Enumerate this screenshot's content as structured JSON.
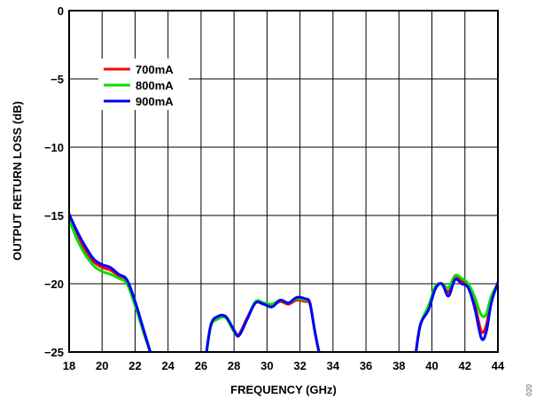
{
  "chart_data": {
    "type": "line",
    "title": "",
    "xlabel": "FREQUENCY (GHz)",
    "ylabel": "OUTPUT RETURN LOSS (dB)",
    "xlim": [
      18,
      44
    ],
    "ylim": [
      -25,
      0
    ],
    "x_ticks": [
      18,
      20,
      22,
      24,
      26,
      28,
      30,
      32,
      34,
      36,
      38,
      40,
      42,
      44
    ],
    "y_ticks": [
      0,
      -5,
      -10,
      -15,
      -20,
      -25
    ],
    "y_tick_labels": [
      "0",
      "−5",
      "−10",
      "−15",
      "−20",
      "−25"
    ],
    "grid": true,
    "legend_position": "top-left",
    "series": [
      {
        "name": "700mA",
        "color": "#ff0000",
        "segments": [
          [
            [
              18.0,
              -15.1
            ],
            [
              18.5,
              -16.5
            ],
            [
              19.0,
              -17.6
            ],
            [
              19.5,
              -18.4
            ],
            [
              20.0,
              -18.8
            ],
            [
              20.5,
              -19.0
            ],
            [
              21.0,
              -19.4
            ],
            [
              21.5,
              -19.8
            ],
            [
              22.0,
              -21.5
            ],
            [
              22.5,
              -23.5
            ],
            [
              23.0,
              -25.3
            ]
          ],
          [
            [
              26.3,
              -25.3
            ],
            [
              26.6,
              -23.0
            ],
            [
              27.0,
              -22.5
            ],
            [
              27.5,
              -22.4
            ],
            [
              28.0,
              -23.5
            ],
            [
              28.3,
              -23.7
            ],
            [
              28.8,
              -22.5
            ],
            [
              29.3,
              -21.4
            ],
            [
              29.8,
              -21.5
            ],
            [
              30.3,
              -21.6
            ],
            [
              30.8,
              -21.3
            ],
            [
              31.3,
              -21.5
            ],
            [
              31.8,
              -21.2
            ],
            [
              32.3,
              -21.3
            ],
            [
              32.6,
              -21.5
            ],
            [
              32.9,
              -23.5
            ],
            [
              33.2,
              -25.3
            ]
          ],
          [
            [
              39.0,
              -25.3
            ],
            [
              39.3,
              -23.0
            ],
            [
              39.8,
              -21.8
            ],
            [
              40.2,
              -20.3
            ],
            [
              40.6,
              -20.0
            ],
            [
              41.0,
              -20.6
            ],
            [
              41.4,
              -19.6
            ],
            [
              41.8,
              -19.8
            ],
            [
              42.2,
              -20.2
            ],
            [
              42.6,
              -21.5
            ],
            [
              43.0,
              -23.5
            ],
            [
              43.3,
              -23.0
            ],
            [
              43.6,
              -21.2
            ],
            [
              44.0,
              -20.0
            ]
          ]
        ]
      },
      {
        "name": "800mA",
        "color": "#00e000",
        "segments": [
          [
            [
              18.0,
              -15.3
            ],
            [
              18.5,
              -16.8
            ],
            [
              19.0,
              -17.9
            ],
            [
              19.5,
              -18.7
            ],
            [
              20.0,
              -19.1
            ],
            [
              20.5,
              -19.3
            ],
            [
              21.0,
              -19.6
            ],
            [
              21.5,
              -20.0
            ],
            [
              22.0,
              -21.6
            ],
            [
              22.5,
              -23.5
            ],
            [
              23.0,
              -25.3
            ]
          ],
          [
            [
              26.3,
              -25.3
            ],
            [
              26.6,
              -23.1
            ],
            [
              27.0,
              -22.6
            ],
            [
              27.5,
              -22.5
            ],
            [
              28.0,
              -23.5
            ],
            [
              28.3,
              -23.8
            ],
            [
              28.8,
              -22.6
            ],
            [
              29.3,
              -21.3
            ],
            [
              29.8,
              -21.4
            ],
            [
              30.3,
              -21.5
            ],
            [
              30.8,
              -21.2
            ],
            [
              31.3,
              -21.4
            ],
            [
              31.8,
              -21.1
            ],
            [
              32.3,
              -21.2
            ],
            [
              32.6,
              -21.4
            ],
            [
              32.9,
              -23.5
            ],
            [
              33.2,
              -25.3
            ]
          ],
          [
            [
              39.0,
              -25.3
            ],
            [
              39.3,
              -23.0
            ],
            [
              39.8,
              -21.6
            ],
            [
              40.2,
              -20.2
            ],
            [
              40.6,
              -20.0
            ],
            [
              41.0,
              -20.3
            ],
            [
              41.4,
              -19.4
            ],
            [
              41.8,
              -19.6
            ],
            [
              42.2,
              -20.0
            ],
            [
              42.6,
              -21.0
            ],
            [
              43.0,
              -22.3
            ],
            [
              43.3,
              -22.2
            ],
            [
              43.6,
              -20.9
            ],
            [
              44.0,
              -20.0
            ]
          ]
        ]
      },
      {
        "name": "900mA",
        "color": "#0000ff",
        "segments": [
          [
            [
              18.0,
              -14.9
            ],
            [
              18.5,
              -16.2
            ],
            [
              19.0,
              -17.3
            ],
            [
              19.5,
              -18.2
            ],
            [
              20.0,
              -18.6
            ],
            [
              20.5,
              -18.8
            ],
            [
              21.0,
              -19.3
            ],
            [
              21.5,
              -19.7
            ],
            [
              22.0,
              -21.3
            ],
            [
              22.5,
              -23.3
            ],
            [
              23.0,
              -25.3
            ]
          ],
          [
            [
              26.3,
              -25.3
            ],
            [
              26.6,
              -23.0
            ],
            [
              27.0,
              -22.4
            ],
            [
              27.5,
              -22.4
            ],
            [
              28.0,
              -23.4
            ],
            [
              28.3,
              -23.8
            ],
            [
              28.8,
              -22.6
            ],
            [
              29.3,
              -21.4
            ],
            [
              29.8,
              -21.5
            ],
            [
              30.3,
              -21.7
            ],
            [
              30.8,
              -21.2
            ],
            [
              31.3,
              -21.4
            ],
            [
              31.8,
              -21.0
            ],
            [
              32.3,
              -21.1
            ],
            [
              32.6,
              -21.4
            ],
            [
              32.9,
              -23.5
            ],
            [
              33.2,
              -25.3
            ]
          ],
          [
            [
              39.0,
              -25.3
            ],
            [
              39.3,
              -23.0
            ],
            [
              39.8,
              -21.9
            ],
            [
              40.2,
              -20.4
            ],
            [
              40.6,
              -20.0
            ],
            [
              41.0,
              -20.9
            ],
            [
              41.4,
              -19.7
            ],
            [
              41.8,
              -20.0
            ],
            [
              42.2,
              -20.3
            ],
            [
              42.6,
              -21.8
            ],
            [
              43.0,
              -24.0
            ],
            [
              43.3,
              -23.5
            ],
            [
              43.6,
              -21.4
            ],
            [
              44.0,
              -19.9
            ]
          ]
        ]
      }
    ]
  },
  "figure_code": "020"
}
